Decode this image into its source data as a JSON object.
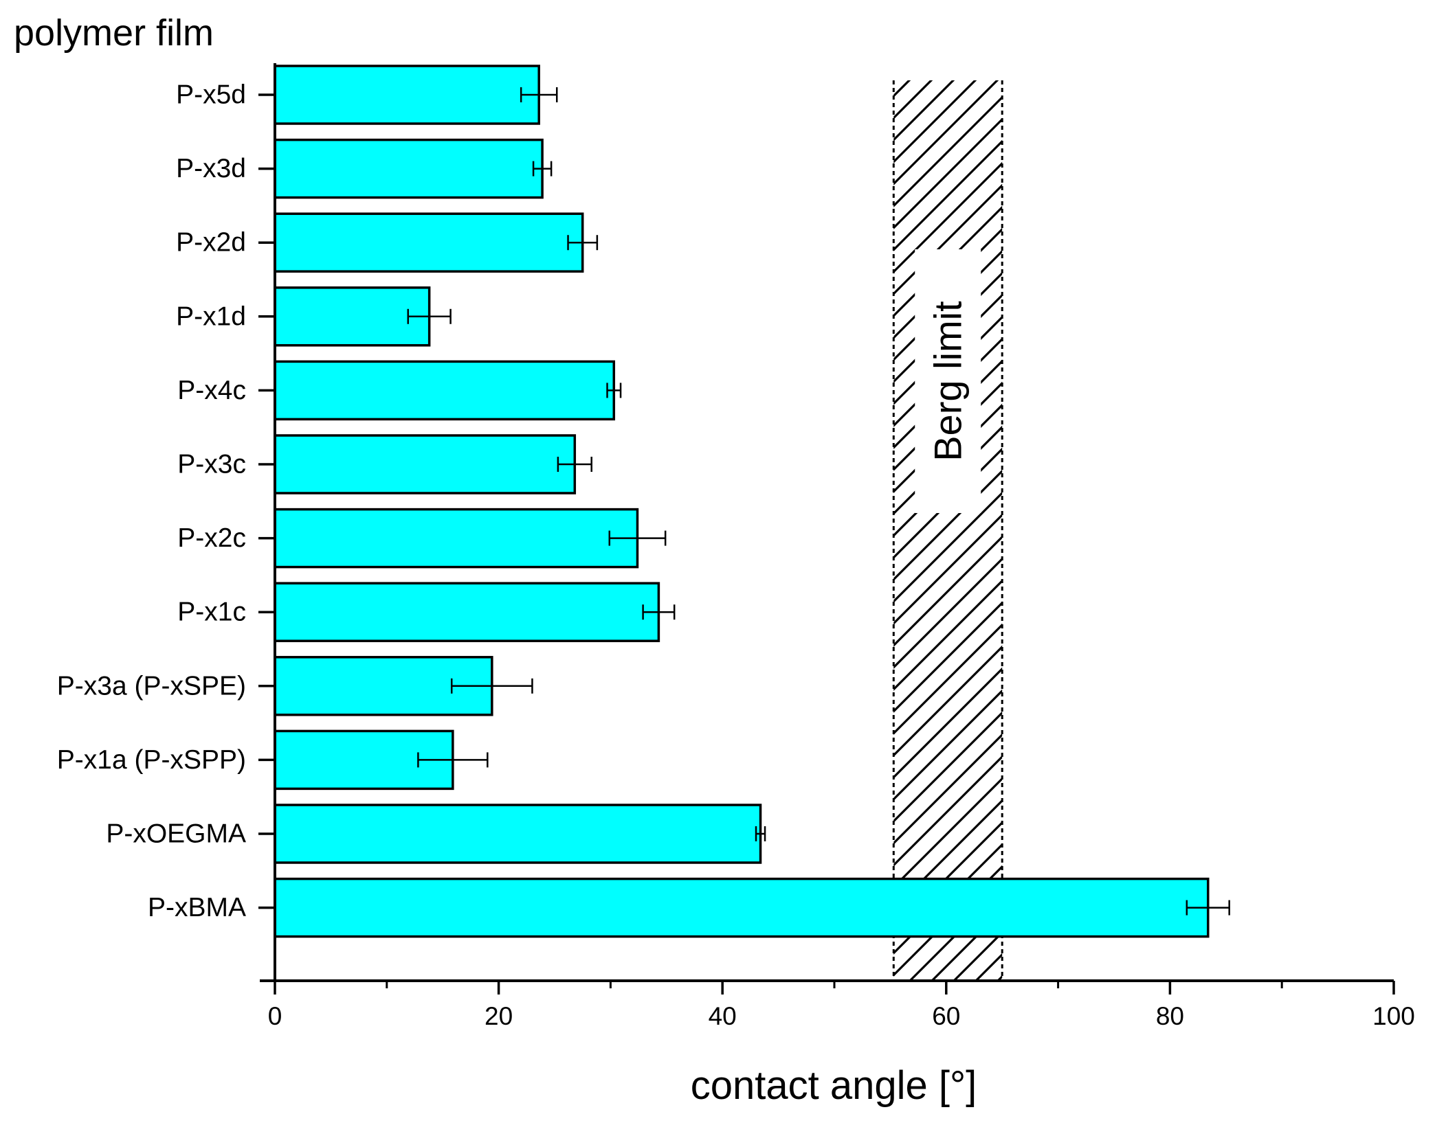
{
  "chart_data": {
    "type": "bar",
    "orientation": "horizontal",
    "title": "",
    "xlabel": "contact angle [°]",
    "ylabel": "polymer film",
    "xlim": [
      0,
      100
    ],
    "xticks": [
      0,
      20,
      40,
      60,
      80,
      100
    ],
    "xticks_minor": [
      10,
      30,
      50,
      70,
      90
    ],
    "grid": false,
    "legend": "none",
    "bar_color": "#00FFFF",
    "categories": [
      "P-x5d",
      "P-x3d",
      "P-x2d",
      "P-x1d",
      "P-x4c",
      "P-x3c",
      "P-x2c",
      "P-x1c",
      "P-x3a (P-xSPE)",
      "P-x1a (P-xSPP)",
      "P-xOEGMA",
      "P-xBMA"
    ],
    "values": [
      23.6,
      23.9,
      27.5,
      13.8,
      30.3,
      26.8,
      32.4,
      34.3,
      19.4,
      15.9,
      43.4,
      83.4
    ],
    "errors": [
      1.6,
      0.8,
      1.3,
      1.9,
      0.6,
      1.5,
      2.5,
      1.4,
      3.6,
      3.1,
      0.4,
      1.9
    ],
    "reference_band": {
      "label": "Berg limit",
      "from": 55.3,
      "to": 65.0,
      "pattern": "diagonal hatch"
    }
  }
}
